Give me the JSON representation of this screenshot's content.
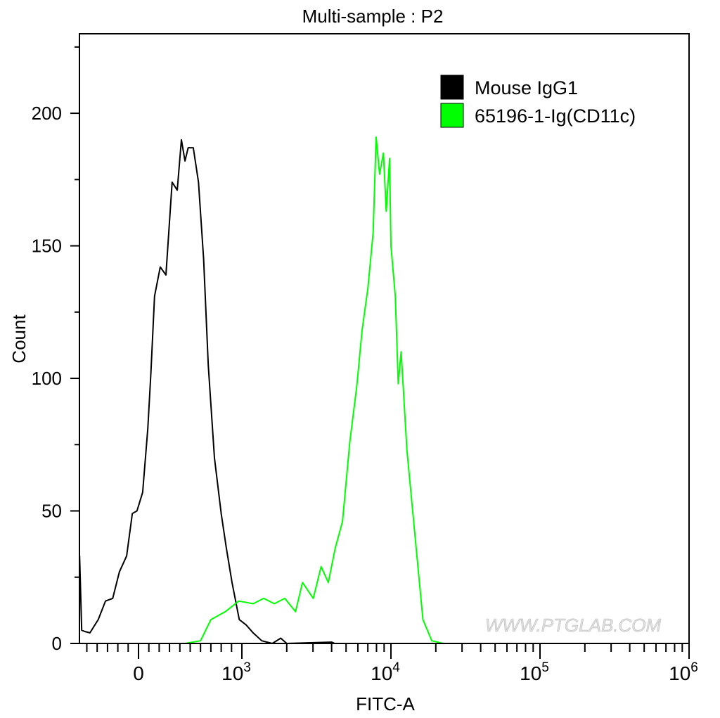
{
  "chart_data": {
    "type": "line",
    "title": "Multi-sample : P2",
    "xlabel": "FITC-A",
    "ylabel": "Count",
    "x_scale": "biexponential",
    "xlim": [
      -570,
      1000000
    ],
    "ylim": [
      0,
      230
    ],
    "x_ticks": [
      {
        "value": 0,
        "label": "0",
        "sup": ""
      },
      {
        "value": 1000,
        "label": "10",
        "sup": "3"
      },
      {
        "value": 10000,
        "label": "10",
        "sup": "4"
      },
      {
        "value": 100000,
        "label": "10",
        "sup": "5"
      },
      {
        "value": 1000000,
        "label": "10",
        "sup": "6"
      }
    ],
    "y_ticks": [
      0,
      50,
      100,
      150,
      200
    ],
    "grid": false,
    "legend_position": "top-right",
    "watermark": "WWW.PTGLAB.COM",
    "series": [
      {
        "name": "Mouse IgG1",
        "color": "#000000",
        "points": [
          [
            -570,
            33
          ],
          [
            -550,
            5
          ],
          [
            -520,
            4.5
          ],
          [
            -470,
            4
          ],
          [
            -390,
            9
          ],
          [
            -320,
            16
          ],
          [
            -250,
            17
          ],
          [
            -185,
            27
          ],
          [
            -115,
            33
          ],
          [
            -60,
            49
          ],
          [
            -15,
            50
          ],
          [
            40,
            57
          ],
          [
            90,
            81
          ],
          [
            120,
            102
          ],
          [
            155,
            131
          ],
          [
            210,
            142
          ],
          [
            265,
            139
          ],
          [
            325,
            174
          ],
          [
            375,
            171
          ],
          [
            415,
            190
          ],
          [
            450,
            182
          ],
          [
            480,
            187
          ],
          [
            530,
            187
          ],
          [
            580,
            174
          ],
          [
            630,
            145
          ],
          [
            675,
            105
          ],
          [
            735,
            70
          ],
          [
            800,
            49
          ],
          [
            850,
            36
          ],
          [
            905,
            23
          ],
          [
            975,
            9
          ],
          [
            1067,
            7
          ],
          [
            1190,
            4
          ],
          [
            1360,
            1
          ],
          [
            1600,
            0
          ],
          [
            1824,
            2
          ],
          [
            2000,
            0
          ],
          [
            4000,
            0.5
          ],
          [
            4200,
            0
          ]
        ]
      },
      {
        "name": "65196-1-Ig(CD11c)",
        "color": "#00ff00",
        "points": [
          [
            313,
            0
          ],
          [
            450,
            0
          ],
          [
            600,
            1
          ],
          [
            700,
            9
          ],
          [
            840,
            12
          ],
          [
            970,
            16
          ],
          [
            1190,
            15
          ],
          [
            1400,
            17
          ],
          [
            1650,
            15
          ],
          [
            1940,
            17
          ],
          [
            2290,
            12
          ],
          [
            2550,
            23
          ],
          [
            3010,
            17
          ],
          [
            3400,
            29
          ],
          [
            3800,
            23
          ],
          [
            4230,
            36
          ],
          [
            4730,
            46
          ],
          [
            5300,
            76
          ],
          [
            5900,
            97
          ],
          [
            6400,
            118
          ],
          [
            7000,
            134
          ],
          [
            7600,
            155
          ],
          [
            7950,
            191
          ],
          [
            8400,
            177
          ],
          [
            8900,
            185
          ],
          [
            9300,
            163
          ],
          [
            9800,
            183
          ],
          [
            10000,
            150
          ],
          [
            10700,
            131
          ],
          [
            11200,
            98
          ],
          [
            11700,
            110
          ],
          [
            12800,
            73
          ],
          [
            14600,
            39
          ],
          [
            16400,
            9
          ],
          [
            18800,
            1
          ],
          [
            22500,
            0
          ]
        ]
      }
    ]
  }
}
